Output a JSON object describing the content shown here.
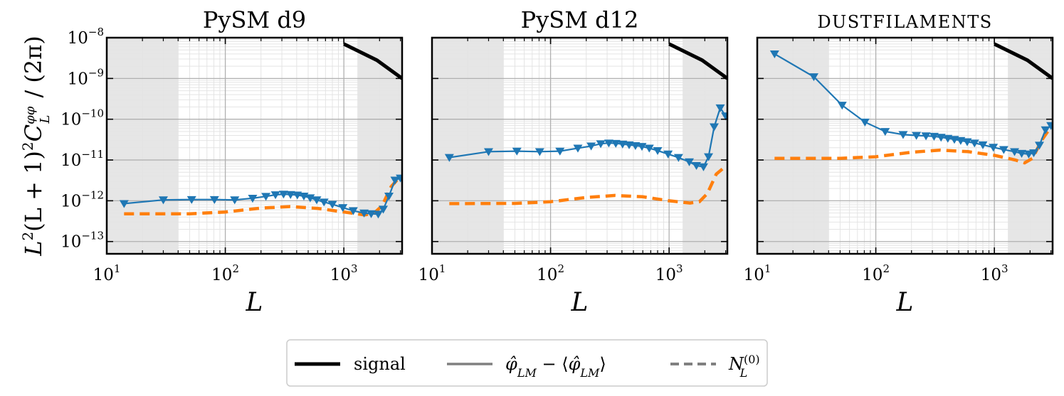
{
  "chart_data": {
    "type": "line",
    "ylabel": "L²(L + 1)²C_L^φφ / (2π)",
    "ylabel_parts": {
      "pre": "L",
      "pre_sup": "2",
      "mid": "(L + 1)",
      "mid_sup": "2",
      "c": "C",
      "c_sup": "φφ",
      "c_sub": "L",
      "post": " / (2π)"
    },
    "xlabel": "L",
    "xscale": "log",
    "yscale": "log",
    "xlim": [
      10,
      3100
    ],
    "ylim": [
      5e-14,
      1e-08
    ],
    "x_ticks": [
      {
        "base": "10",
        "exp": "1",
        "value": 10
      },
      {
        "base": "10",
        "exp": "2",
        "value": 100
      },
      {
        "base": "10",
        "exp": "3",
        "value": 1000
      }
    ],
    "y_ticks": [
      {
        "base": "10",
        "exp": "−8",
        "value": 1e-08
      },
      {
        "base": "10",
        "exp": "−9",
        "value": 1e-09
      },
      {
        "base": "10",
        "exp": "−10",
        "value": 1e-10
      },
      {
        "base": "10",
        "exp": "−11",
        "value": 1e-11
      },
      {
        "base": "10",
        "exp": "−12",
        "value": 1e-12
      },
      {
        "base": "10",
        "exp": "−13",
        "value": 1e-13
      }
    ],
    "shaded_ranges": [
      [
        10,
        40
      ],
      [
        1300,
        3100
      ]
    ],
    "grid": true,
    "panels": [
      {
        "title": "PySM d9",
        "title_style": "normal",
        "signal": {
          "name": "signal",
          "x": [
            1000,
            1900,
            3100
          ],
          "y": [
            7e-09,
            2.8e-09,
            1e-09
          ]
        },
        "estimate": {
          "name": "phi_hat_LM - <phi_hat_LM>",
          "x": [
            14,
            30,
            52,
            81,
            120,
            170,
            220,
            265,
            310,
            355,
            405,
            460,
            520,
            590,
            680,
            800,
            980,
            1200,
            1480,
            1700,
            1950,
            2150,
            2400,
            2700,
            3000
          ],
          "y": [
            8.5e-13,
            1.05e-12,
            1.07e-12,
            1.07e-12,
            1.05e-12,
            1.15e-12,
            1.28e-12,
            1.4e-12,
            1.45e-12,
            1.42e-12,
            1.38e-12,
            1.3e-12,
            1.18e-12,
            1.05e-12,
            9.3e-13,
            8.2e-13,
            6.8e-13,
            5.7e-13,
            5e-13,
            4.8e-13,
            4.7e-13,
            6.2e-13,
            1.3e-12,
            3.2e-12,
            3.6e-12
          ]
        },
        "noise": {
          "name": "N_L^(0)",
          "x": [
            14,
            50,
            100,
            200,
            350,
            600,
            1000,
            1500,
            1800,
            2100,
            2500,
            3000
          ],
          "y": [
            4.8e-13,
            4.8e-13,
            5.3e-13,
            6.6e-13,
            7.2e-13,
            6.5e-13,
            5.3e-13,
            4.5e-13,
            5e-13,
            7.5e-13,
            2.2e-12,
            4e-12
          ]
        }
      },
      {
        "title": "PySM d12",
        "title_style": "normal",
        "signal": {
          "name": "signal",
          "x": [
            1000,
            1900,
            3100
          ],
          "y": [
            7e-09,
            2.8e-09,
            1e-09
          ]
        },
        "estimate": {
          "name": "phi_hat_LM - <phi_hat_LM>",
          "x": [
            14,
            30,
            52,
            81,
            120,
            170,
            220,
            265,
            310,
            355,
            405,
            460,
            520,
            590,
            680,
            800,
            980,
            1200,
            1480,
            1700,
            1950,
            2150,
            2400,
            2700,
            3000
          ],
          "y": [
            1.15e-11,
            1.6e-11,
            1.65e-11,
            1.6e-11,
            1.65e-11,
            1.95e-11,
            2.2e-11,
            2.5e-11,
            2.6e-11,
            2.55e-11,
            2.45e-11,
            2.35e-11,
            2.25e-11,
            2.15e-11,
            1.95e-11,
            1.7e-11,
            1.4e-11,
            1.15e-11,
            9e-12,
            7.3e-12,
            6.8e-12,
            1.2e-11,
            6.5e-11,
            1.9e-10,
            1.2e-10
          ]
        },
        "noise": {
          "name": "N_L^(0)",
          "x": [
            14,
            50,
            100,
            200,
            350,
            600,
            1000,
            1500,
            1800,
            2100,
            2500,
            3000
          ],
          "y": [
            8.5e-13,
            8.6e-13,
            9.5e-13,
            1.2e-12,
            1.35e-12,
            1.25e-12,
            1e-12,
            8.8e-13,
            9.5e-13,
            1.5e-12,
            4.5e-12,
            7e-12
          ]
        }
      },
      {
        "title": "DUSTFILAMENTS",
        "title_style": "smallcaps",
        "signal": {
          "name": "signal",
          "x": [
            1000,
            1900,
            3100
          ],
          "y": [
            7e-09,
            2.8e-09,
            1e-09
          ]
        },
        "estimate": {
          "name": "phi_hat_LM - <phi_hat_LM>",
          "x": [
            14,
            30,
            52,
            81,
            120,
            170,
            220,
            265,
            310,
            355,
            405,
            460,
            520,
            590,
            680,
            800,
            980,
            1200,
            1480,
            1700,
            1950,
            2150,
            2400,
            2700,
            3000
          ],
          "y": [
            4e-09,
            1.1e-09,
            2.2e-10,
            8.5e-11,
            5e-11,
            4.2e-11,
            4e-11,
            3.9e-11,
            3.8e-11,
            3.6e-11,
            3.4e-11,
            3.2e-11,
            3e-11,
            2.8e-11,
            2.6e-11,
            2.35e-11,
            2.05e-11,
            1.8e-11,
            1.6e-11,
            1.45e-11,
            1.4e-11,
            1.5e-11,
            2.3e-11,
            5.5e-11,
            7e-11
          ]
        },
        "noise": {
          "name": "N_L^(0)",
          "x": [
            14,
            50,
            100,
            200,
            350,
            600,
            1000,
            1500,
            1800,
            2100,
            2500,
            3000
          ],
          "y": [
            1.1e-11,
            1.1e-11,
            1.2e-11,
            1.55e-11,
            1.75e-11,
            1.6e-11,
            1.3e-11,
            1e-11,
            8.5e-12,
            1.1e-11,
            3e-11,
            6.5e-11
          ]
        }
      }
    ],
    "legend": {
      "placement": "bottom-center",
      "entries": [
        {
          "key": "signal",
          "label": "signal",
          "style": "solid-thick",
          "color": "#000000"
        },
        {
          "key": "estimate",
          "label": "φ̂_LM − ⟨φ̂_LM⟩",
          "style": "solid",
          "color": "#808080",
          "parts": {
            "a": "φ̂",
            "a_sub": "LM",
            "minus": " − ⟨",
            "b": "φ̂",
            "b_sub": "LM",
            "close": "⟩"
          }
        },
        {
          "key": "noise",
          "label": "N_L^(0)",
          "style": "dashed",
          "color": "#808080",
          "parts": {
            "n": "N",
            "n_sub": "L",
            "n_sup": "(0)"
          }
        }
      ]
    },
    "colors": {
      "estimate": "#1f77b4",
      "noise": "#ff7f0e",
      "signal": "#000000",
      "shade": "#e6e6e6",
      "grid_major": "#b0b0b0",
      "grid_minor": "#e4e4e4"
    }
  }
}
